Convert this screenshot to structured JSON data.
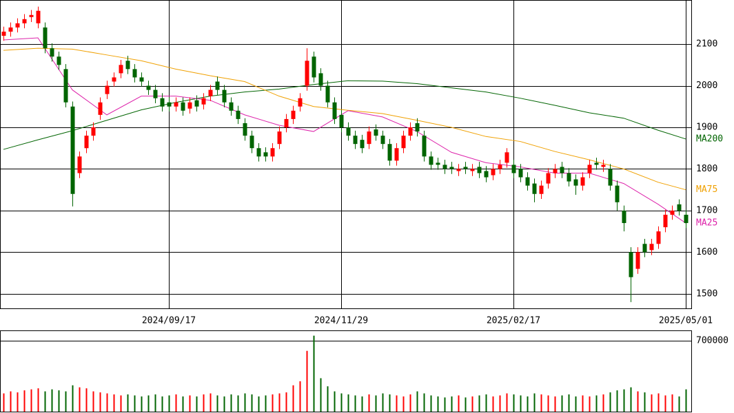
{
  "chart_data": [
    {
      "type": "candlestick",
      "categories": [
        null,
        null,
        null,
        null,
        null,
        null,
        null,
        null,
        null,
        null,
        null,
        null,
        null,
        null,
        null,
        null,
        null,
        null,
        null,
        null,
        null,
        null,
        null,
        null,
        "2024/09/17",
        null,
        null,
        null,
        null,
        null,
        null,
        null,
        null,
        null,
        null,
        null,
        null,
        null,
        null,
        null,
        null,
        null,
        null,
        null,
        null,
        null,
        null,
        null,
        null,
        "2024/11/29",
        null,
        null,
        null,
        null,
        null,
        null,
        null,
        null,
        null,
        null,
        null,
        null,
        null,
        null,
        null,
        null,
        null,
        null,
        null,
        null,
        null,
        null,
        null,
        null,
        "2025/02/17",
        null,
        null,
        null,
        null,
        null,
        null,
        null,
        null,
        null,
        null,
        null,
        null,
        null,
        null,
        null,
        null,
        null,
        null,
        null,
        null,
        null,
        null,
        null,
        null,
        "2025/05/01"
      ],
      "open": [
        2120,
        2130,
        2140,
        2150,
        2165,
        2150,
        2140,
        2090,
        2070,
        2040,
        1950,
        1790,
        1850,
        1880,
        1930,
        1980,
        2010,
        2030,
        2060,
        2040,
        2020,
        2000,
        1990,
        1970,
        1960,
        1950,
        1960,
        1945,
        1965,
        1955,
        1975,
        2010,
        1990,
        1960,
        1940,
        1910,
        1880,
        1850,
        1840,
        1830,
        1860,
        1900,
        1920,
        1950,
        2000,
        2070,
        2030,
        2000,
        1960,
        1930,
        1900,
        1880,
        1870,
        1860,
        1895,
        1880,
        1860,
        1820,
        1850,
        1880,
        1910,
        1880,
        1830,
        1815,
        1810,
        1805,
        1795,
        1805,
        1795,
        1805,
        1795,
        1785,
        1800,
        1815,
        1810,
        1800,
        1780,
        1765,
        1740,
        1765,
        1790,
        1805,
        1790,
        1775,
        1760,
        1790,
        1815,
        1805,
        1800,
        1760,
        1700,
        1600,
        1560,
        1620,
        1605,
        1620,
        1660,
        1690,
        1715,
        1690
      ],
      "high": [
        2142,
        2152,
        2162,
        2172,
        2182,
        2190,
        2152,
        2102,
        2082,
        2052,
        1962,
        1842,
        1892,
        1912,
        1972,
        2012,
        2032,
        2062,
        2072,
        2052,
        2032,
        2012,
        2002,
        1982,
        1972,
        1972,
        1972,
        1972,
        1977,
        1982,
        2002,
        2022,
        2002,
        1972,
        1952,
        1922,
        1892,
        1862,
        1852,
        1862,
        1902,
        1932,
        1952,
        1982,
        2090,
        2082,
        2042,
        2012,
        1972,
        1942,
        1912,
        1892,
        1882,
        1902,
        1907,
        1892,
        1872,
        1862,
        1892,
        1912,
        1922,
        1892,
        1842,
        1827,
        1822,
        1817,
        1812,
        1817,
        1812,
        1817,
        1807,
        1812,
        1822,
        1850,
        1822,
        1812,
        1792,
        1777,
        1772,
        1802,
        1812,
        1817,
        1802,
        1787,
        1792,
        1822,
        1827,
        1822,
        1812,
        1772,
        1712,
        1612,
        1612,
        1632,
        1632,
        1662,
        1702,
        1712,
        1727,
        1702
      ],
      "low": [
        2108,
        2118,
        2128,
        2138,
        2153,
        2138,
        2078,
        2058,
        2038,
        1948,
        1710,
        1778,
        1838,
        1868,
        1918,
        1968,
        1998,
        2018,
        2028,
        2008,
        1998,
        1978,
        1958,
        1938,
        1938,
        1938,
        1928,
        1933,
        1938,
        1943,
        1963,
        1978,
        1948,
        1928,
        1908,
        1868,
        1838,
        1818,
        1818,
        1818,
        1848,
        1888,
        1908,
        1938,
        1988,
        2008,
        1988,
        1948,
        1908,
        1888,
        1868,
        1848,
        1838,
        1848,
        1868,
        1848,
        1808,
        1808,
        1838,
        1868,
        1878,
        1818,
        1798,
        1798,
        1788,
        1788,
        1783,
        1788,
        1783,
        1778,
        1768,
        1773,
        1788,
        1803,
        1778,
        1768,
        1748,
        1720,
        1728,
        1753,
        1778,
        1778,
        1758,
        1738,
        1748,
        1778,
        1798,
        1793,
        1748,
        1700,
        1650,
        1480,
        1548,
        1588,
        1593,
        1608,
        1648,
        1678,
        1688,
        1658
      ],
      "close": [
        2130,
        2140,
        2150,
        2160,
        2170,
        2180,
        2090,
        2070,
        2050,
        1960,
        1740,
        1830,
        1880,
        1900,
        1960,
        2000,
        2020,
        2050,
        2040,
        2020,
        2010,
        1990,
        1970,
        1950,
        1950,
        1960,
        1940,
        1960,
        1950,
        1970,
        1990,
        1990,
        1960,
        1940,
        1920,
        1880,
        1850,
        1830,
        1830,
        1850,
        1890,
        1920,
        1940,
        1970,
        2060,
        2020,
        2000,
        1960,
        1920,
        1900,
        1880,
        1860,
        1850,
        1890,
        1880,
        1860,
        1820,
        1850,
        1880,
        1900,
        1890,
        1830,
        1810,
        1810,
        1800,
        1800,
        1800,
        1800,
        1800,
        1790,
        1780,
        1800,
        1810,
        1840,
        1790,
        1780,
        1760,
        1740,
        1760,
        1790,
        1800,
        1790,
        1770,
        1760,
        1780,
        1810,
        1810,
        1810,
        1760,
        1720,
        1670,
        1540,
        1600,
        1600,
        1620,
        1650,
        1690,
        1700,
        1700,
        1670
      ],
      "up_color": "#ff0000",
      "down_color": "#006400",
      "ylim": [
        1465,
        2206
      ],
      "yticks": [
        1500,
        1600,
        1700,
        1800,
        1900,
        2000,
        2100
      ],
      "grid": true,
      "ma": [
        {
          "name": "MA200",
          "color": "#006400",
          "x": [
            0,
            5,
            10,
            15,
            20,
            25,
            30,
            35,
            40,
            45,
            50,
            55,
            60,
            65,
            70,
            75,
            80,
            85,
            90,
            95,
            99
          ],
          "values": [
            1847,
            1870,
            1892,
            1917,
            1942,
            1960,
            1975,
            1985,
            1992,
            2003,
            2012,
            2011,
            2005,
            1995,
            1985,
            1970,
            1953,
            1935,
            1922,
            1893,
            1872
          ]
        },
        {
          "name": "MA75",
          "color": "#f0a000",
          "x": [
            0,
            5,
            10,
            15,
            20,
            25,
            30,
            35,
            40,
            45,
            50,
            55,
            60,
            65,
            70,
            75,
            80,
            85,
            90,
            95,
            99
          ],
          "values": [
            2085,
            2090,
            2088,
            2074,
            2060,
            2040,
            2024,
            2010,
            1975,
            1950,
            1941,
            1933,
            1917,
            1900,
            1878,
            1866,
            1842,
            1822,
            1800,
            1768,
            1750
          ]
        },
        {
          "name": "MA25",
          "color": "#dd22aa",
          "x": [
            0,
            5,
            10,
            15,
            20,
            25,
            30,
            35,
            40,
            45,
            50,
            55,
            60,
            65,
            70,
            75,
            80,
            85,
            90,
            95,
            99
          ],
          "values": [
            2110,
            2115,
            1990,
            1930,
            1975,
            1975,
            1965,
            1930,
            1905,
            1890,
            1940,
            1925,
            1890,
            1840,
            1815,
            1805,
            1790,
            1790,
            1765,
            1715,
            1670
          ]
        }
      ]
    },
    {
      "type": "volume",
      "values": [
        180000,
        200000,
        190000,
        210000,
        220000,
        230000,
        200000,
        220000,
        210000,
        200000,
        260000,
        240000,
        230000,
        200000,
        190000,
        180000,
        170000,
        160000,
        170000,
        160000,
        150000,
        160000,
        170000,
        150000,
        160000,
        170000,
        150000,
        160000,
        150000,
        170000,
        180000,
        160000,
        150000,
        170000,
        160000,
        180000,
        170000,
        150000,
        160000,
        170000,
        180000,
        190000,
        260000,
        300000,
        600000,
        750000,
        330000,
        250000,
        200000,
        180000,
        170000,
        160000,
        150000,
        170000,
        160000,
        180000,
        170000,
        160000,
        150000,
        170000,
        200000,
        180000,
        160000,
        150000,
        140000,
        150000,
        160000,
        140000,
        150000,
        160000,
        170000,
        150000,
        160000,
        180000,
        170000,
        160000,
        150000,
        180000,
        170000,
        160000,
        150000,
        160000,
        170000,
        150000,
        160000,
        150000,
        160000,
        170000,
        190000,
        210000,
        220000,
        240000,
        200000,
        190000,
        170000,
        180000,
        160000,
        170000,
        150000,
        220000
      ],
      "ylim": [
        0,
        802000
      ],
      "yticks": [
        700000
      ]
    }
  ]
}
